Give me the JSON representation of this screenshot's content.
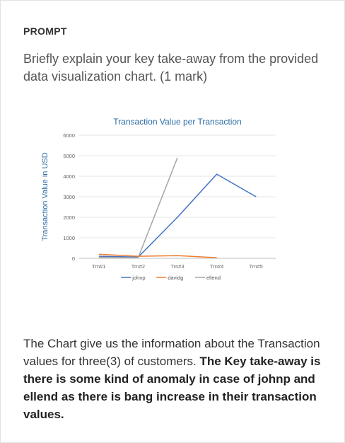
{
  "prompt_label": "PROMPT",
  "question": "Briefly explain your key take-away from the provided data visualization chart. (1 mark)",
  "answer": {
    "normal": "The Chart give us the information about the Transaction values for three(3) of customers. ",
    "bold": "The Key take-away is there is some kind of anomaly in case of johnp and ellend as there is bang increase in their transaction values."
  },
  "chart_data": {
    "type": "line",
    "title": "Transaction Value per Transaction",
    "ylabel": "Transaction Value in USD",
    "xlabel": "",
    "categories": [
      "Trn#1",
      "Trn#2",
      "Trn#3",
      "Trn#4",
      "Trn#5"
    ],
    "yticks": [
      "0",
      "1000",
      "2000",
      "3000",
      "4000",
      "5000",
      "6000"
    ],
    "ylim": [
      0,
      6000
    ],
    "grid": true,
    "legend_position": "bottom",
    "series": [
      {
        "name": "johnp",
        "color": "#4472c4",
        "values": [
          100,
          60,
          2000,
          4100,
          3000
        ]
      },
      {
        "name": "davidg",
        "color": "#ed7d31",
        "values": [
          200,
          100,
          130,
          30,
          null
        ]
      },
      {
        "name": "ellend",
        "color": "#a5a5a5",
        "values": [
          50,
          30,
          4900,
          null,
          null
        ]
      }
    ]
  }
}
